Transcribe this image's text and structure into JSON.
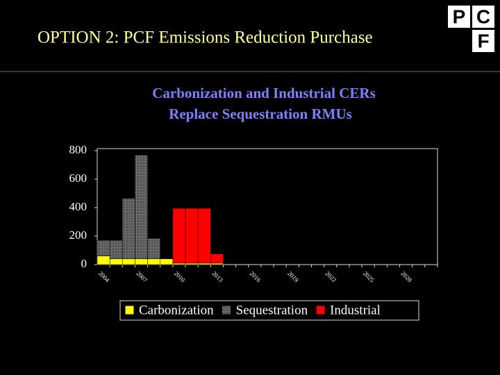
{
  "heading": "OPTION 2:  PCF Emissions Reduction Purchase",
  "logo": {
    "letters": [
      "P",
      "C",
      "F"
    ]
  },
  "chart_data": {
    "type": "bar",
    "stacked": true,
    "title": "Carbonization and Industrial CERs",
    "subtitle": "Replace Sequestration RMUs",
    "categories": [
      "2004",
      null,
      null,
      "2007",
      null,
      null,
      "2010",
      null,
      null,
      "2013",
      null,
      null,
      "2016",
      null,
      null,
      "2019",
      null,
      null,
      "2022",
      null,
      null,
      "2025",
      null,
      null,
      "2028",
      null,
      null
    ],
    "series": [
      {
        "name": "Carbonization",
        "color": "#ffff00",
        "values": [
          60,
          40,
          40,
          40,
          40,
          40,
          10,
          10,
          10,
          10,
          null,
          null,
          null,
          null,
          null,
          null,
          null,
          null,
          null,
          null,
          null,
          null,
          null,
          null,
          null,
          null,
          null
        ]
      },
      {
        "name": "Sequestration",
        "color": "#a0a0a0",
        "values": [
          110,
          130,
          425,
          730,
          145,
          null,
          null,
          null,
          null,
          null,
          null,
          null,
          null,
          null,
          null,
          null,
          null,
          null,
          null,
          null,
          null,
          null,
          null,
          null,
          null,
          null,
          null
        ]
      },
      {
        "name": "Industrial",
        "color": "#ff0000",
        "values": [
          null,
          null,
          null,
          null,
          null,
          null,
          385,
          385,
          385,
          65,
          null,
          null,
          null,
          null,
          null,
          null,
          null,
          null,
          null,
          null,
          null,
          null,
          null,
          null,
          null,
          null,
          null
        ]
      }
    ],
    "ylim": [
      0,
      800
    ],
    "yticks": [
      0,
      200,
      400,
      600,
      800
    ],
    "grid": false,
    "legend": "bottom"
  }
}
